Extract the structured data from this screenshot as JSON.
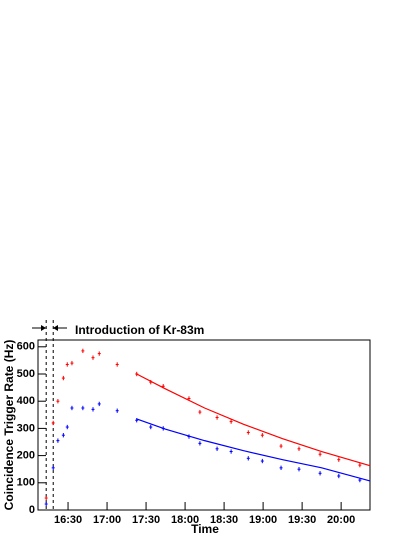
{
  "chart_data": {
    "type": "errorbar",
    "annotation": "Introduction of Kr-83m",
    "xlabel": "Time",
    "ylabel": "Coincidence Trigger Rate (Hz)",
    "xlim": [
      16.115,
      20.37
    ],
    "ylim": [
      0,
      625
    ],
    "xticks": [
      {
        "value": 16.5,
        "label": "16:30"
      },
      {
        "value": 17,
        "label": "17:00"
      },
      {
        "value": 17.5,
        "label": "17:30"
      },
      {
        "value": 18,
        "label": "18:00"
      },
      {
        "value": 18.5,
        "label": "18:30"
      },
      {
        "value": 19,
        "label": "19:00"
      },
      {
        "value": 19.5,
        "label": "19:30"
      },
      {
        "value": 20,
        "label": "20:00"
      }
    ],
    "yticks": [
      0,
      100,
      200,
      300,
      400,
      500,
      600
    ],
    "vlines": [
      16.22,
      16.31
    ],
    "x": [
      16.22,
      16.31,
      16.37,
      16.44,
      16.49,
      16.55,
      16.69,
      16.82,
      16.9,
      17.13,
      17.38,
      17.56,
      17.72,
      18.05,
      18.19,
      18.41,
      18.59,
      18.81,
      18.99,
      19.23,
      19.46,
      19.73,
      19.97,
      20.24
    ],
    "series": [
      {
        "color": "#ff0000",
        "error": 8,
        "values": [
          44,
          320,
          400,
          485,
          535,
          540,
          585,
          560,
          575,
          535,
          500,
          470,
          455,
          410,
          360,
          340,
          325,
          285,
          275,
          235,
          225,
          205,
          185,
          165
        ]
      },
      {
        "color": "#0000ff",
        "error": 8,
        "values": [
          22,
          155,
          255,
          275,
          305,
          375,
          375,
          370,
          390,
          365,
          330,
          305,
          300,
          270,
          245,
          225,
          215,
          190,
          180,
          155,
          150,
          135,
          125,
          110
        ]
      }
    ],
    "fit_x": [
      17.38,
      17.75,
      18.25,
      18.75,
      19.25,
      19.75,
      20.37
    ],
    "fits": [
      {
        "color": "#ff0000",
        "values": [
          500,
          445,
          375,
          315,
          262,
          215,
          163
        ]
      },
      {
        "color": "#0000ff",
        "values": [
          335,
          297,
          255,
          218,
          185,
          155,
          107
        ]
      }
    ]
  }
}
